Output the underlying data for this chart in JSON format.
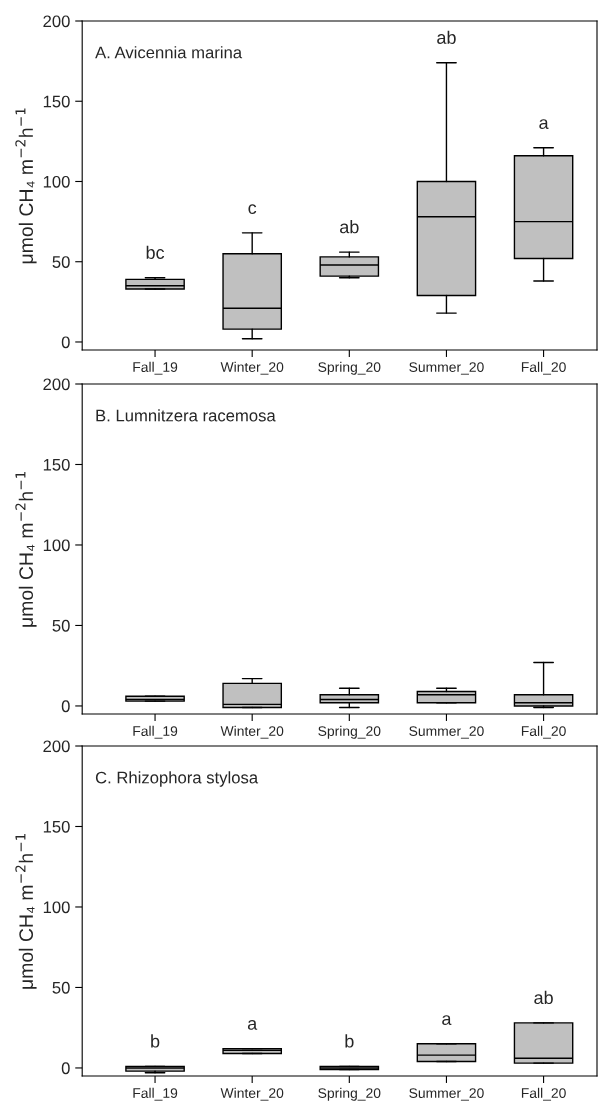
{
  "chart_data": [
    {
      "type": "box",
      "title": "A. Avicennia marina",
      "ylabel": "μmol CH₄ m$^{−2}$h$^{−1}$",
      "categories": [
        "Fall_19",
        "Winter_20",
        "Spring_20",
        "Summer_20",
        "Fall_20"
      ],
      "ylim": [
        -5,
        200
      ],
      "yticks": [
        0,
        50,
        100,
        150,
        200
      ],
      "color": "#c0c0c0",
      "boxes": [
        {
          "low": 33,
          "q1": 33,
          "median": 35,
          "q3": 39,
          "high": 40
        },
        {
          "low": 2,
          "q1": 8,
          "median": 21,
          "q3": 55,
          "high": 68
        },
        {
          "low": 40,
          "q1": 41,
          "median": 48,
          "q3": 53,
          "high": 56
        },
        {
          "low": 18,
          "q1": 29,
          "median": 78,
          "q3": 100,
          "high": 174
        },
        {
          "low": 38,
          "q1": 52,
          "median": 75,
          "q3": 116,
          "high": 121
        }
      ],
      "annotations": [
        "bc",
        "c",
        "ab",
        "ab",
        "a"
      ]
    },
    {
      "type": "box",
      "title": "B. Lumnitzera racemosa",
      "ylabel": "μmol CH₄ m$^{−2}$h$^{−1}$",
      "categories": [
        "Fall_19",
        "Winter_20",
        "Spring_20",
        "Summer_20",
        "Fall_20"
      ],
      "ylim": [
        -5,
        200
      ],
      "yticks": [
        0,
        50,
        100,
        150,
        200
      ],
      "color": "#c0c0c0",
      "boxes": [
        {
          "low": 3,
          "q1": 3,
          "median": 4,
          "q3": 6,
          "high": 6
        },
        {
          "low": -1,
          "q1": -1,
          "median": 1,
          "q3": 14,
          "high": 17
        },
        {
          "low": -1,
          "q1": 2,
          "median": 4,
          "q3": 7,
          "high": 11
        },
        {
          "low": 2,
          "q1": 2,
          "median": 7,
          "q3": 9,
          "high": 11
        },
        {
          "low": -1,
          "q1": 0,
          "median": 2,
          "q3": 7,
          "high": 27
        }
      ]
    },
    {
      "type": "box",
      "title": "C. Rhizophora stylosa",
      "ylabel": "μmol CH₄ m$^{−2}$h$^{−1}$",
      "categories": [
        "Fall_19",
        "Winter_20",
        "Spring_20",
        "Summer_20",
        "Fall_20"
      ],
      "ylim": [
        -5,
        200
      ],
      "yticks": [
        0,
        50,
        100,
        150,
        200
      ],
      "color": "#c0c0c0",
      "boxes": [
        {
          "low": -3,
          "q1": -2,
          "median": 0,
          "q3": 1,
          "high": 1
        },
        {
          "low": 9,
          "q1": 9,
          "median": 11,
          "q3": 12,
          "high": 12
        },
        {
          "low": -1,
          "q1": -1,
          "median": 0,
          "q3": 1,
          "high": 1
        },
        {
          "low": 4,
          "q1": 4,
          "median": 8,
          "q3": 15,
          "high": 15
        },
        {
          "low": 3,
          "q1": 3,
          "median": 6,
          "q3": 28,
          "high": 28
        }
      ],
      "annotations": [
        "b",
        "a",
        "b",
        "a",
        "ab"
      ]
    }
  ]
}
